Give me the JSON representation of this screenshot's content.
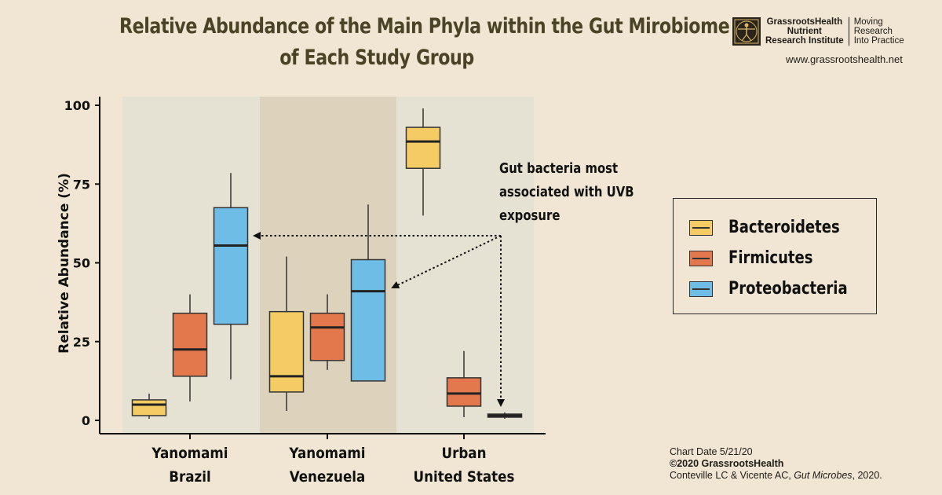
{
  "header": {
    "title_line1": "Relative Abundance of the Main Phyla within the Gut Mirobiome",
    "title_line2": "of Each Study Group"
  },
  "logo": {
    "org_line1": "GrassrootsHealth",
    "org_line2": "Nutrient",
    "org_line3": "Research Institute",
    "tag_line1": "Moving",
    "tag_line2": "Research",
    "tag_line3": "Into Practice",
    "url": "www.grassrootshealth.net"
  },
  "annotation": {
    "line1": "Gut bacteria most",
    "line2": "associated with UVB",
    "line3": "exposure"
  },
  "credits": {
    "date": "Chart Date 5/21/20",
    "copyright": "©2020 GrassrootsHealth",
    "citation_authors": "Conteville LC &  Vicente AC, ",
    "citation_journal": "Gut Microbes",
    "citation_year": ", 2020."
  },
  "colors": {
    "Bacteroidetes": "#f5cc64",
    "Firmicutes": "#e2784c",
    "Proteobacteria": "#6ebde6",
    "band_light": "#e6e2d3",
    "band_dark": "#ddd3bd"
  },
  "chart_data": {
    "type": "box",
    "ylabel": "Relative Abundance (%)",
    "ylim": [
      0,
      100
    ],
    "yticks": [
      0,
      25,
      50,
      75,
      100
    ],
    "groups": [
      {
        "label_line1": "Yanomami",
        "label_line2": "Brazil"
      },
      {
        "label_line1": "Yanomami",
        "label_line2": "Venezuela"
      },
      {
        "label_line1": "Urban",
        "label_line2": "United States"
      }
    ],
    "legend": [
      "Bacteroidetes",
      "Firmicutes",
      "Proteobacteria"
    ],
    "series": [
      {
        "name": "Bacteroidetes",
        "boxes": [
          {
            "whisker_low": 0.5,
            "q1": 1.5,
            "median": 5,
            "q3": 6.5,
            "whisker_high": 8.5
          },
          {
            "whisker_low": 3,
            "q1": 9,
            "median": 14,
            "q3": 34.5,
            "whisker_high": 52
          },
          {
            "whisker_low": 65,
            "q1": 80,
            "median": 88.5,
            "q3": 93,
            "whisker_high": 99
          }
        ]
      },
      {
        "name": "Firmicutes",
        "boxes": [
          {
            "whisker_low": 6,
            "q1": 14,
            "median": 22.5,
            "q3": 34,
            "whisker_high": 40
          },
          {
            "whisker_low": 16,
            "q1": 19,
            "median": 29.5,
            "q3": 34,
            "whisker_high": 40
          },
          {
            "whisker_low": 1,
            "q1": 4.5,
            "median": 8.5,
            "q3": 13.5,
            "whisker_high": 22
          }
        ]
      },
      {
        "name": "Proteobacteria",
        "boxes": [
          {
            "whisker_low": 13,
            "q1": 30.5,
            "median": 55.5,
            "q3": 67.5,
            "whisker_high": 78.5
          },
          {
            "whisker_low": 12.5,
            "q1": 12.5,
            "median": 41,
            "q3": 51,
            "whisker_high": 68.5
          },
          {
            "whisker_low": 0.5,
            "q1": 1,
            "median": 1.5,
            "q3": 2,
            "whisker_high": 2.5
          }
        ]
      }
    ]
  }
}
